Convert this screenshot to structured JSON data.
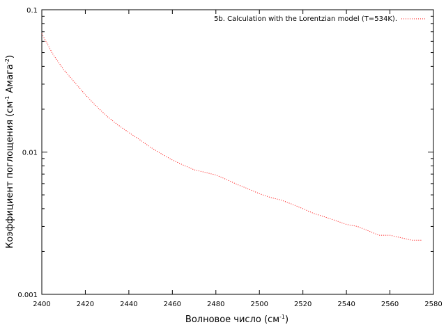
{
  "chart_data": {
    "type": "line",
    "xlabel": "Волновое число (см",
    "xlabel_sup": "-1",
    "xlabel_end": ")",
    "ylabel": "Коэффициент поглощения (см",
    "ylabel_sup1": "-1",
    "ylabel_mid": " Амага",
    "ylabel_sup2": "-2",
    "ylabel_end": ")",
    "xlim": [
      2400,
      2580
    ],
    "ylim": [
      0.001,
      0.1
    ],
    "yscale": "log",
    "grid": false,
    "legend_position": "top-right",
    "x_ticks": [
      2400,
      2420,
      2440,
      2460,
      2480,
      2500,
      2520,
      2540,
      2560,
      2580
    ],
    "x_tick_labels": [
      "2400",
      "2420",
      "2440",
      "2460",
      "2480",
      "2500",
      "2520",
      "2540",
      "2560",
      "2580"
    ],
    "y_ticks": [
      0.001,
      0.01,
      0.1
    ],
    "y_tick_labels": [
      "0.001",
      "0.01",
      "0.1"
    ],
    "series": [
      {
        "name": "5b. Calculation with the Lorentzian model (T=534K).",
        "color": "#ff0000",
        "line_style": "dotted",
        "x": [
          2400,
          2405,
          2410,
          2415,
          2420,
          2425,
          2430,
          2435,
          2440,
          2445,
          2450,
          2455,
          2460,
          2465,
          2470,
          2475,
          2480,
          2485,
          2490,
          2495,
          2500,
          2505,
          2510,
          2515,
          2520,
          2525,
          2530,
          2535,
          2540,
          2545,
          2550,
          2555,
          2560,
          2565,
          2570,
          2575
        ],
        "y": [
          0.068,
          0.049,
          0.038,
          0.031,
          0.0253,
          0.021,
          0.0178,
          0.0155,
          0.0137,
          0.0122,
          0.0108,
          0.0097,
          0.0088,
          0.0081,
          0.0075,
          0.0072,
          0.0069,
          0.0064,
          0.0059,
          0.0055,
          0.0051,
          0.0048,
          0.0046,
          0.0043,
          0.004,
          0.0037,
          0.0035,
          0.0033,
          0.0031,
          0.003,
          0.0028,
          0.0026,
          0.0026,
          0.0025,
          0.0024,
          0.0024
        ]
      }
    ]
  }
}
